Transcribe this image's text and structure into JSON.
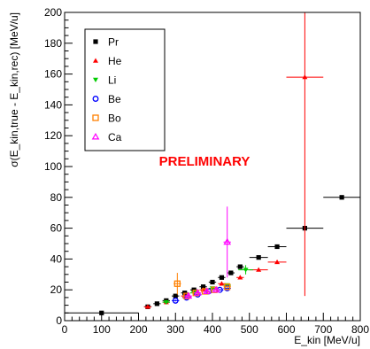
{
  "chart_data": {
    "type": "scatter",
    "xlabel": "E_kin [MeV/u]",
    "ylabel": "σ(E_kin,true - E_kin,rec) [MeV/u]",
    "xlim": [
      0,
      800
    ],
    "ylim": [
      0,
      200
    ],
    "x_ticks": [
      "0",
      "100",
      "200",
      "300",
      "400",
      "500",
      "600",
      "700",
      "800"
    ],
    "y_ticks": [
      "0",
      "20",
      "40",
      "60",
      "80",
      "100",
      "120",
      "140",
      "160",
      "180",
      "200"
    ],
    "grid": false,
    "legend_position": "top-left",
    "annotation": "PRELIMINARY",
    "series": [
      {
        "name": "Pr",
        "color": "#000000",
        "marker": "square",
        "points": [
          {
            "x": 100,
            "y": 5,
            "xerr": 100,
            "yerr": 0
          },
          {
            "x": 225,
            "y": 9,
            "xerr": 10,
            "yerr": 0.5
          },
          {
            "x": 250,
            "y": 11,
            "xerr": 10,
            "yerr": 0.5
          },
          {
            "x": 275,
            "y": 13,
            "xerr": 10,
            "yerr": 0.5
          },
          {
            "x": 300,
            "y": 16,
            "xerr": 10,
            "yerr": 0.5
          },
          {
            "x": 325,
            "y": 18,
            "xerr": 10,
            "yerr": 0.5
          },
          {
            "x": 350,
            "y": 20,
            "xerr": 10,
            "yerr": 0.5
          },
          {
            "x": 375,
            "y": 22,
            "xerr": 10,
            "yerr": 0.5
          },
          {
            "x": 400,
            "y": 25,
            "xerr": 10,
            "yerr": 0.5
          },
          {
            "x": 425,
            "y": 28,
            "xerr": 10,
            "yerr": 0.5
          },
          {
            "x": 450,
            "y": 31,
            "xerr": 10,
            "yerr": 0.5
          },
          {
            "x": 475,
            "y": 35,
            "xerr": 10,
            "yerr": 0.5
          },
          {
            "x": 525,
            "y": 41,
            "xerr": 25,
            "yerr": 0.5
          },
          {
            "x": 575,
            "y": 48,
            "xerr": 25,
            "yerr": 0.5
          },
          {
            "x": 650,
            "y": 60,
            "xerr": 50,
            "yerr": 0.5
          },
          {
            "x": 750,
            "y": 80,
            "xerr": 50,
            "yerr": 0.5
          }
        ]
      },
      {
        "name": "He",
        "color": "#ff0000",
        "marker": "triangle-up",
        "points": [
          {
            "x": 225,
            "y": 9,
            "xerr": 10,
            "yerr": 0.5
          },
          {
            "x": 275,
            "y": 12,
            "xerr": 10,
            "yerr": 0.5
          },
          {
            "x": 325,
            "y": 16,
            "xerr": 10,
            "yerr": 0.5
          },
          {
            "x": 375,
            "y": 20,
            "xerr": 10,
            "yerr": 0.5
          },
          {
            "x": 425,
            "y": 24,
            "xerr": 10,
            "yerr": 0.5
          },
          {
            "x": 475,
            "y": 28,
            "xerr": 10,
            "yerr": 0.5
          },
          {
            "x": 525,
            "y": 33,
            "xerr": 25,
            "yerr": 0.5
          },
          {
            "x": 575,
            "y": 38,
            "xerr": 25,
            "yerr": 0.5
          },
          {
            "x": 650,
            "y": 158,
            "xerr": 50,
            "yerr": 142
          }
        ]
      },
      {
        "name": "Li",
        "color": "#00cc00",
        "marker": "triangle-down",
        "points": [
          {
            "x": 275,
            "y": 12,
            "xerr": 10,
            "yerr": 0.5
          },
          {
            "x": 350,
            "y": 18,
            "xerr": 10,
            "yerr": 0.5
          },
          {
            "x": 400,
            "y": 21,
            "xerr": 10,
            "yerr": 0.5
          },
          {
            "x": 440,
            "y": 23,
            "xerr": 10,
            "yerr": 1
          },
          {
            "x": 490,
            "y": 33,
            "xerr": 20,
            "yerr": 3
          }
        ]
      },
      {
        "name": "Be",
        "color": "#0000ff",
        "marker": "circle-open",
        "points": [
          {
            "x": 300,
            "y": 13,
            "xerr": 10,
            "yerr": 0.5
          },
          {
            "x": 330,
            "y": 15,
            "xerr": 10,
            "yerr": 0.5
          },
          {
            "x": 360,
            "y": 17,
            "xerr": 10,
            "yerr": 0.5
          },
          {
            "x": 390,
            "y": 19,
            "xerr": 10,
            "yerr": 0.5
          },
          {
            "x": 420,
            "y": 20,
            "xerr": 10,
            "yerr": 0.5
          },
          {
            "x": 440,
            "y": 21,
            "xerr": 10,
            "yerr": 0.5
          }
        ]
      },
      {
        "name": "Bo",
        "color": "#ff8000",
        "marker": "square-open",
        "points": [
          {
            "x": 305,
            "y": 24,
            "xerr": 10,
            "yerr": 7
          },
          {
            "x": 330,
            "y": 16,
            "xerr": 10,
            "yerr": 1
          },
          {
            "x": 355,
            "y": 18,
            "xerr": 10,
            "yerr": 1
          },
          {
            "x": 380,
            "y": 19,
            "xerr": 10,
            "yerr": 1
          },
          {
            "x": 405,
            "y": 20,
            "xerr": 10,
            "yerr": 1
          },
          {
            "x": 440,
            "y": 22,
            "xerr": 10,
            "yerr": 1
          }
        ]
      },
      {
        "name": "Ca",
        "color": "#ff00ff",
        "marker": "triangle-open",
        "points": [
          {
            "x": 335,
            "y": 16,
            "xerr": 10,
            "yerr": 1
          },
          {
            "x": 360,
            "y": 18,
            "xerr": 10,
            "yerr": 1
          },
          {
            "x": 385,
            "y": 19,
            "xerr": 10,
            "yerr": 1
          },
          {
            "x": 410,
            "y": 20,
            "xerr": 10,
            "yerr": 1
          },
          {
            "x": 440,
            "y": 51,
            "xerr": 10,
            "yerr": 23
          }
        ]
      }
    ]
  }
}
